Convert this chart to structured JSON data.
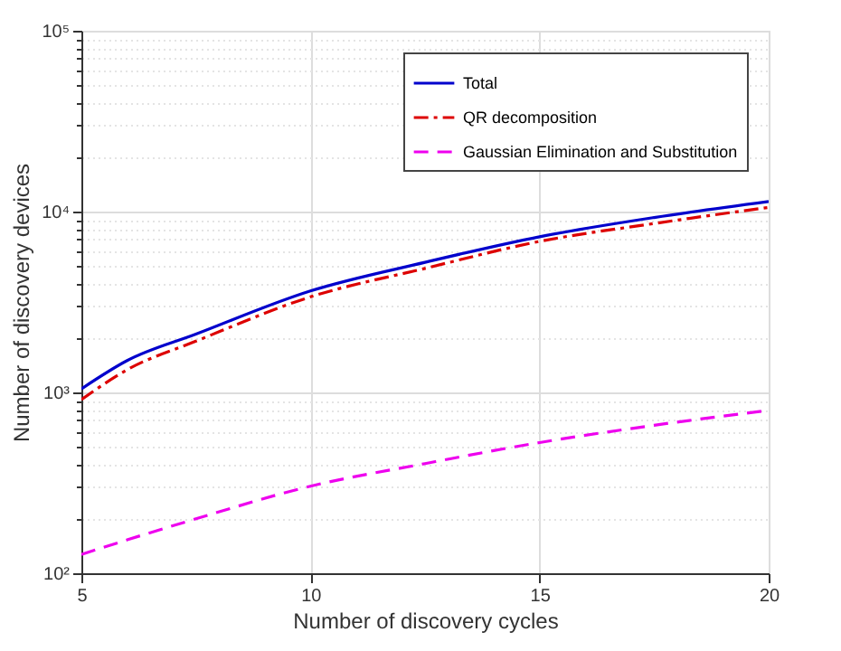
{
  "chart_data": {
    "type": "line",
    "xlabel": "Number of discovery cycles",
    "ylabel": "Number of discovery devices",
    "log": "y",
    "x": [
      5,
      6,
      7.5,
      10,
      12.5,
      15,
      17.5,
      20
    ],
    "series": [
      {
        "name": "Total",
        "color": "#0000cc",
        "line_style": "solid",
        "values": [
          1046,
          1500,
          2100,
          3640,
          5240,
          7260,
          9270,
          11370
        ]
      },
      {
        "name": "QR decomposition",
        "color": "#dd0000",
        "line_style": "dashdot",
        "values": [
          913,
          1335,
          1920,
          3375,
          4850,
          6840,
          8590,
          10550
        ]
      },
      {
        "name": "Gaussian Elimination and Substitution",
        "color": "#ee00ee",
        "line_style": "dashed",
        "values": [
          127,
          153,
          200,
          303,
          404,
          528,
          658,
          796
        ]
      }
    ],
    "xlim": [
      5,
      20
    ],
    "xticks": [
      5,
      10,
      15,
      20
    ],
    "ylim": [
      100,
      100000
    ],
    "yticks": [
      {
        "value": 100,
        "label": "10²"
      },
      {
        "value": 200,
        "label": null
      },
      {
        "value": 300,
        "label": null
      },
      {
        "value": 400,
        "label": null
      },
      {
        "value": 500,
        "label": null
      },
      {
        "value": 600,
        "label": null
      },
      {
        "value": 700,
        "label": null
      },
      {
        "value": 800,
        "label": null
      },
      {
        "value": 900,
        "label": null
      },
      {
        "value": 1000,
        "label": "10³"
      },
      {
        "value": 2000,
        "label": null
      },
      {
        "value": 3000,
        "label": null
      },
      {
        "value": 4000,
        "label": null
      },
      {
        "value": 5000,
        "label": null
      },
      {
        "value": 6000,
        "label": null
      },
      {
        "value": 7000,
        "label": null
      },
      {
        "value": 8000,
        "label": null
      },
      {
        "value": 9000,
        "label": null
      },
      {
        "value": 10000,
        "label": "10⁴"
      },
      {
        "value": 20000,
        "label": null
      },
      {
        "value": 30000,
        "label": null
      },
      {
        "value": 40000,
        "label": null
      },
      {
        "value": 50000,
        "label": null
      },
      {
        "value": 60000,
        "label": null
      },
      {
        "value": 70000,
        "label": null
      },
      {
        "value": 80000,
        "label": null
      },
      {
        "value": 90000,
        "label": null
      },
      {
        "value": 100000,
        "label": "10⁵"
      }
    ],
    "grid": true,
    "legend": "top right",
    "marker": "none"
  }
}
